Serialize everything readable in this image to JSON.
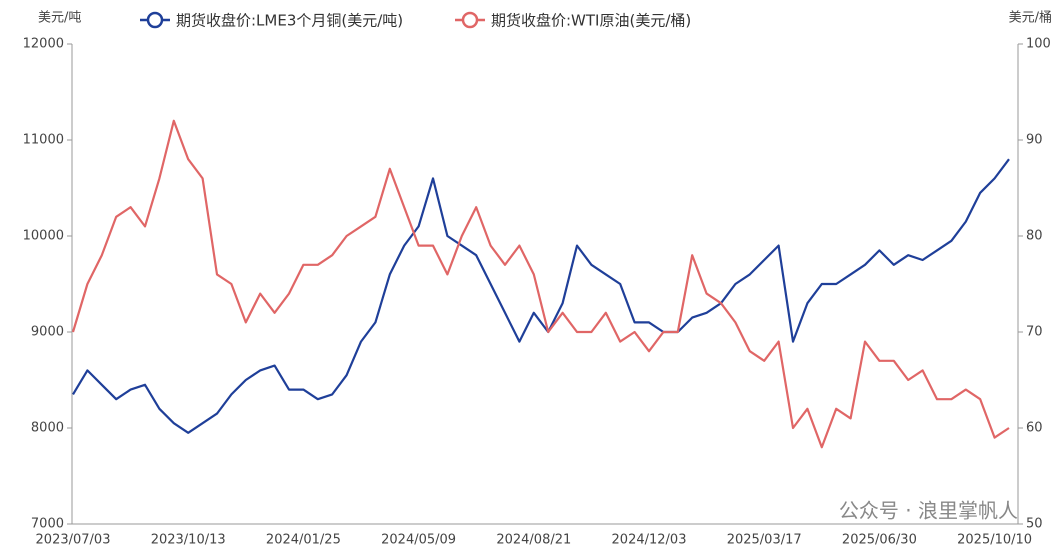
{
  "chart_data": {
    "type": "line",
    "y_unit": "美元/吨",
    "y2_unit": "美元/桶",
    "watermark": "公众号 · 浪里掌帆人",
    "categories": [
      "2023/07/03",
      null,
      null,
      null,
      null,
      null,
      null,
      null,
      "2023/10/13",
      null,
      null,
      null,
      null,
      null,
      null,
      null,
      "2024/01/25",
      null,
      null,
      null,
      null,
      null,
      null,
      null,
      "2024/05/09",
      null,
      null,
      null,
      null,
      null,
      null,
      null,
      "2024/08/21",
      null,
      null,
      null,
      null,
      null,
      null,
      null,
      "2024/12/03",
      null,
      null,
      null,
      null,
      null,
      null,
      null,
      "2025/03/17",
      null,
      null,
      null,
      null,
      null,
      null,
      null,
      "2025/06/30",
      null,
      null,
      null,
      null,
      null,
      null,
      null,
      "2025/10/10",
      null
    ],
    "series": [
      {
        "name": "期货收盘价:LME3个月铜(美元/吨)",
        "color": "#1f3f99",
        "values": [
          8350,
          8600,
          8450,
          8300,
          8400,
          8450,
          8200,
          8050,
          7950,
          8050,
          8150,
          8350,
          8500,
          8600,
          8650,
          8400,
          8400,
          8300,
          8350,
          8550,
          8900,
          9100,
          9600,
          9900,
          10100,
          10600,
          10000,
          9900,
          9800,
          9500,
          9200,
          8900,
          9200,
          9000,
          9300,
          9900,
          9700,
          9600,
          9500,
          9100,
          9100,
          9000,
          9000,
          9150,
          9200,
          9300,
          9500,
          9600,
          9750,
          9900,
          8900,
          9300,
          9500,
          9500,
          9600,
          9700,
          9850,
          9700,
          9800,
          9750,
          9850,
          9950,
          10150,
          10450,
          10600,
          10800
        ]
      },
      {
        "name": "期货收盘价:WTI原油(美元/桶)",
        "color": "#e06666",
        "axis": "y2",
        "values": [
          70,
          75,
          78,
          82,
          83,
          81,
          86,
          92,
          88,
          86,
          76,
          75,
          71,
          74,
          72,
          74,
          77,
          77,
          78,
          80,
          81,
          82,
          87,
          83,
          79,
          79,
          76,
          80,
          83,
          79,
          77,
          79,
          76,
          70,
          72,
          70,
          70,
          72,
          69,
          70,
          68,
          70,
          70,
          78,
          74,
          73,
          71,
          68,
          67,
          69,
          60,
          62,
          58,
          62,
          61,
          69,
          67,
          67,
          65,
          66,
          63,
          63,
          64,
          63,
          59,
          60
        ]
      }
    ],
    "ylim": [
      7000,
      12000
    ],
    "yticks": [
      7000,
      8000,
      9000,
      10000,
      11000,
      12000
    ],
    "y2lim": [
      50,
      100
    ],
    "y2ticks": [
      50,
      60,
      70,
      80,
      90,
      100
    ]
  }
}
